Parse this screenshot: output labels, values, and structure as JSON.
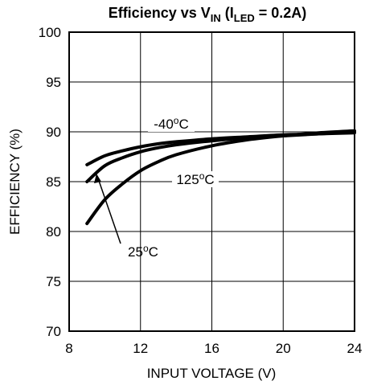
{
  "chart_data": {
    "type": "line",
    "title": {
      "prefix": "Efficiency vs V",
      "prefix_sub": "IN",
      "middle": " (I",
      "middle_sub": "LED",
      "suffix": " = 0.2A)"
    },
    "xlabel": "INPUT VOLTAGE (V)",
    "ylabel": "EFFICIENCY (%)",
    "xlim": [
      8,
      24
    ],
    "ylim": [
      70,
      100
    ],
    "x_ticks": [
      "8",
      "12",
      "16",
      "20",
      "24"
    ],
    "y_ticks": [
      "70",
      "75",
      "80",
      "85",
      "90",
      "95",
      "100"
    ],
    "grid": true,
    "series": [
      {
        "name": "-40",
        "unit": "C",
        "x": [
          9,
          10,
          11,
          12,
          13,
          14,
          16,
          18,
          20,
          22,
          24
        ],
        "y": [
          86.7,
          87.6,
          88.1,
          88.5,
          88.8,
          89.0,
          89.3,
          89.5,
          89.7,
          89.8,
          89.9
        ]
      },
      {
        "name": "25",
        "unit": "C",
        "x": [
          9,
          10,
          11,
          12,
          13,
          14,
          16,
          18,
          20,
          22,
          24
        ],
        "y": [
          85.0,
          86.6,
          87.4,
          88.0,
          88.4,
          88.7,
          89.1,
          89.4,
          89.6,
          89.8,
          90.0
        ]
      },
      {
        "name": "125",
        "unit": "C",
        "x": [
          9,
          10,
          11,
          12,
          13,
          14,
          16,
          18,
          20,
          22,
          24
        ],
        "y": [
          80.8,
          83.2,
          84.8,
          86.1,
          87.0,
          87.7,
          88.6,
          89.2,
          89.6,
          89.9,
          90.1
        ]
      }
    ]
  }
}
